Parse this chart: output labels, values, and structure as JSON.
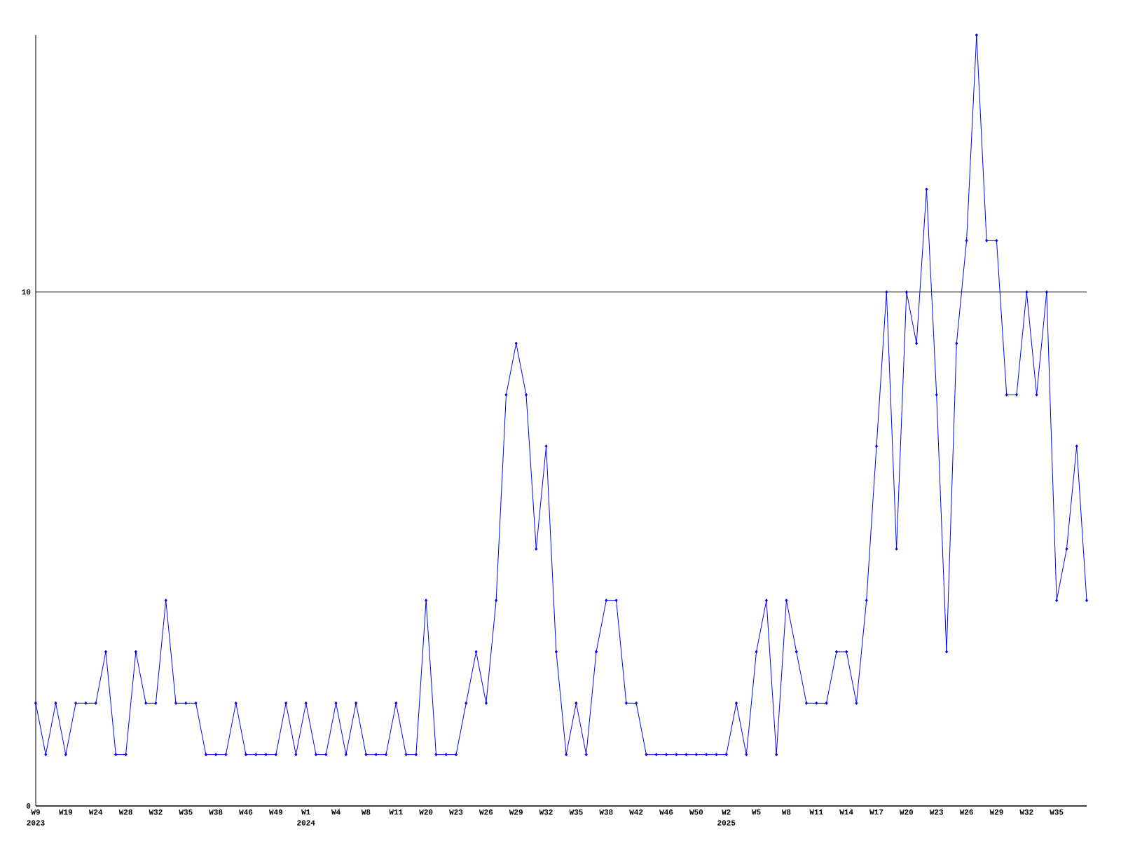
{
  "chart_data": {
    "type": "line",
    "categories": [
      "W9",
      null,
      null,
      "W19",
      null,
      null,
      "W24",
      null,
      null,
      "W28",
      null,
      null,
      "W32",
      null,
      null,
      "W35",
      null,
      null,
      "W38",
      null,
      null,
      "W46",
      null,
      null,
      "W49",
      null,
      null,
      "W1",
      null,
      null,
      "W4",
      null,
      null,
      "W8",
      null,
      null,
      "W11",
      null,
      null,
      "W20",
      null,
      null,
      "W23",
      null,
      null,
      "W26",
      null,
      null,
      "W29",
      null,
      null,
      "W32",
      null,
      null,
      "W35",
      null,
      null,
      "W38",
      null,
      null,
      "W42",
      null,
      null,
      "W46",
      null,
      null,
      "W50",
      null,
      null,
      "W2",
      null,
      null,
      "W5",
      null,
      null,
      "W8",
      null,
      null,
      "W11",
      null,
      null,
      "W14",
      null,
      null,
      "W17",
      null,
      null,
      "W20",
      null,
      null,
      "W23",
      null,
      null,
      "W26",
      null,
      null,
      "W29",
      null,
      null,
      "W32",
      null,
      null,
      "W35",
      null,
      null,
      null
    ],
    "values": [
      2,
      1,
      2,
      1,
      2,
      2,
      2,
      3,
      1,
      1,
      3,
      2,
      2,
      4,
      2,
      2,
      2,
      1,
      1,
      1,
      2,
      1,
      1,
      1,
      1,
      2,
      1,
      2,
      1,
      1,
      2,
      1,
      2,
      1,
      1,
      1,
      2,
      1,
      1,
      4,
      1,
      1,
      1,
      2,
      3,
      2,
      4,
      8,
      9,
      8,
      5,
      7,
      3,
      1,
      2,
      1,
      3,
      4,
      4,
      2,
      2,
      1,
      1,
      1,
      1,
      1,
      1,
      1,
      1,
      1,
      2,
      1,
      3,
      4,
      1,
      4,
      3,
      2,
      2,
      2,
      3,
      3,
      2,
      4,
      7,
      10,
      5,
      10,
      9,
      12,
      8,
      3,
      9,
      11,
      15,
      11,
      11,
      8,
      8,
      10,
      8,
      10,
      4,
      5,
      7,
      4
    ],
    "color": "#0000ff",
    "ylim": [
      0,
      15
    ],
    "yticks": [
      0,
      10
    ],
    "grid": "y",
    "marker": "diamond",
    "annotations": [
      "2023",
      "2024",
      "2025"
    ]
  }
}
